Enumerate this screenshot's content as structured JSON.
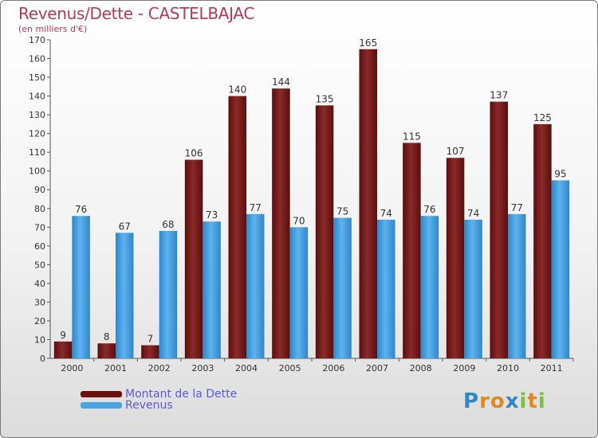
{
  "title": "Revenus/Dette - CASTELBAJAC",
  "subtitle": "(en milliers d'€)",
  "chart_data": {
    "type": "bar",
    "title": "Revenus/Dette - CASTELBAJAC",
    "ylabel": "(en milliers d'€)",
    "xlabel": "",
    "ylim": [
      0,
      170
    ],
    "yticks": [
      0,
      10,
      20,
      30,
      40,
      50,
      60,
      70,
      80,
      90,
      100,
      110,
      120,
      130,
      140,
      150,
      160,
      170
    ],
    "grid": false,
    "legend_position": "bottom-left",
    "categories": [
      "2000",
      "2001",
      "2002",
      "2003",
      "2004",
      "2005",
      "2006",
      "2007",
      "2008",
      "2009",
      "2010",
      "2011"
    ],
    "series": [
      {
        "name": "Montant de la Dette",
        "color": "#7a1b1b",
        "values": [
          9,
          8,
          7,
          106,
          140,
          144,
          135,
          165,
          115,
          107,
          137,
          125
        ]
      },
      {
        "name": "Revenus",
        "color": "#4aa3e4",
        "values": [
          76,
          67,
          68,
          73,
          77,
          70,
          75,
          74,
          76,
          74,
          77,
          95
        ]
      }
    ]
  },
  "legend": [
    {
      "label": "Montant de la Dette",
      "color": "#6b0f0f"
    },
    {
      "label": "Revenus",
      "color": "#4aa3e4"
    }
  ],
  "logo": {
    "letters": [
      "P",
      "r",
      "o",
      "x",
      "i",
      "t",
      "i"
    ],
    "colors": [
      "#2f86c9",
      "#e08a1e",
      "#e08a1e",
      "#2f86c9",
      "#7fbf3f",
      "#e08a1e",
      "#7fbf3f"
    ]
  }
}
